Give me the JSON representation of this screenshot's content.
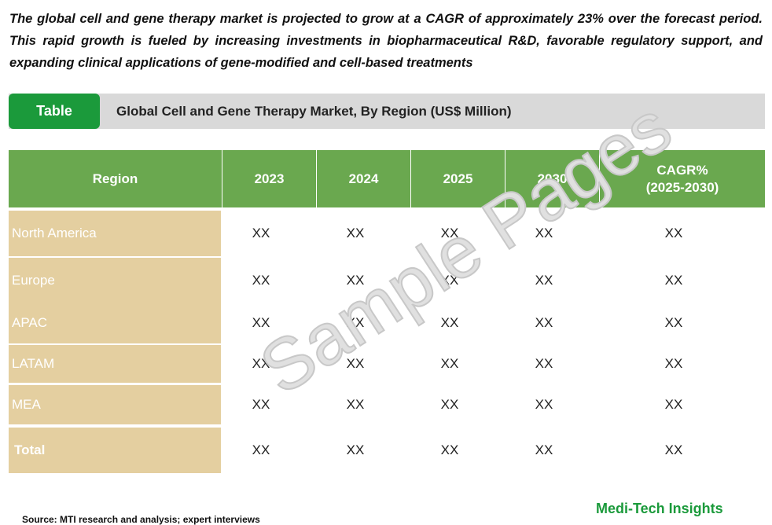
{
  "intro": "The global cell and gene therapy market is projected to grow at a CAGR of approximately 23% over the forecast period. This rapid growth is fueled by increasing investments in biopharmaceutical R&D, favorable regulatory support, and expanding clinical applications of gene-modified and cell-based treatments",
  "banner": {
    "tab_label": "Table",
    "title": "Global Cell and Gene Therapy Market, By Region (US$ Million)"
  },
  "table": {
    "headers": [
      "Region",
      "2023",
      "2024",
      "2025",
      "2030",
      "CAGR%",
      "(2025-2030)"
    ],
    "rows": [
      {
        "label": "North America",
        "values": [
          "XX",
          "XX",
          "XX",
          "XX",
          "XX"
        ]
      },
      {
        "label": "Europe",
        "values": [
          "XX",
          "XX",
          "XX",
          "XX",
          "XX"
        ]
      },
      {
        "label": "APAC",
        "values": [
          "XX",
          "XX",
          "XX",
          "XX",
          "XX"
        ]
      },
      {
        "label": "LATAM",
        "values": [
          "XX",
          "XX",
          "XX",
          "XX",
          "XX"
        ]
      },
      {
        "label": "MEA",
        "values": [
          "XX",
          "XX",
          "XX",
          "XX",
          "XX"
        ]
      },
      {
        "label": "Total",
        "values": [
          "XX",
          "XX",
          "XX",
          "XX",
          "XX"
        ]
      }
    ]
  },
  "watermark": "Sample Pages",
  "source": "Source: MTI research and analysis; expert interviews",
  "brand": "Medi-Tech Insights"
}
